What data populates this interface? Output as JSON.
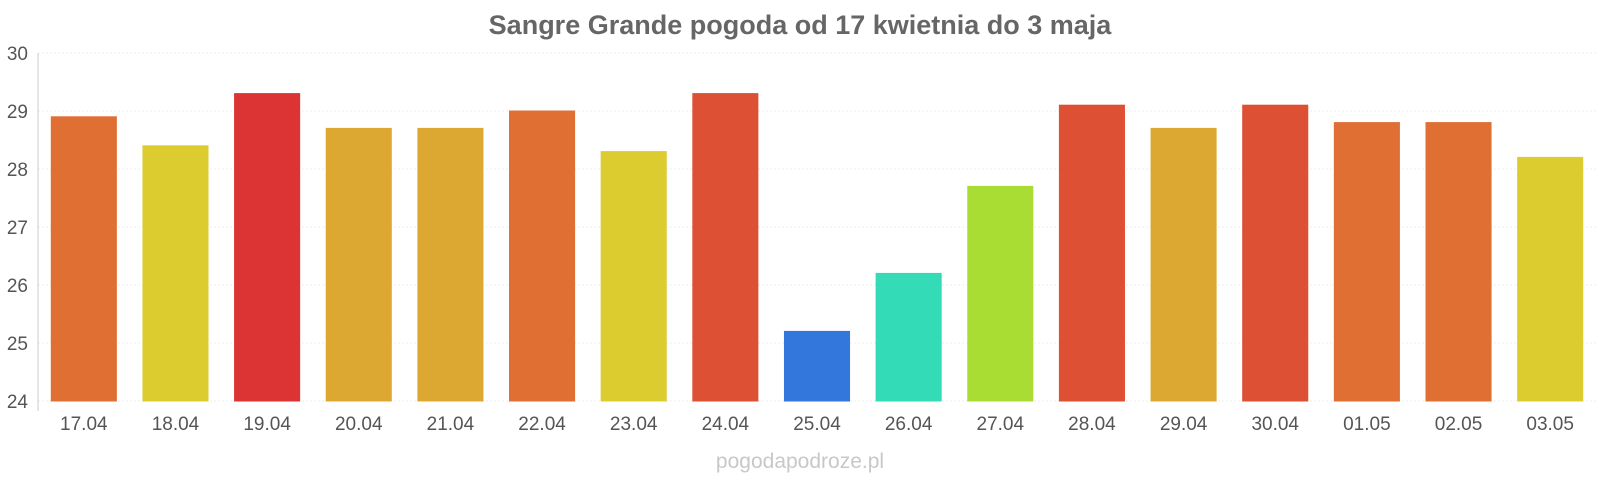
{
  "chart_data": {
    "type": "bar",
    "title": "Sangre Grande pogoda od 17 kwietnia do 3 maja",
    "xlabel": "",
    "ylabel": "",
    "ylim": [
      24,
      30
    ],
    "yticks": [
      24,
      25,
      26,
      27,
      28,
      29,
      30
    ],
    "grid": true,
    "legend": "none",
    "categories": [
      "17.04",
      "18.04",
      "19.04",
      "20.04",
      "21.04",
      "22.04",
      "23.04",
      "24.04",
      "25.04",
      "26.04",
      "27.04",
      "28.04",
      "29.04",
      "30.04",
      "01.05",
      "02.05",
      "03.05"
    ],
    "values": [
      28.9,
      28.4,
      29.3,
      28.7,
      28.7,
      29.0,
      28.3,
      29.3,
      25.2,
      26.2,
      27.7,
      29.1,
      28.7,
      29.1,
      28.8,
      28.8,
      28.2
    ],
    "colors": [
      "#df6f33",
      "#dccc30",
      "#dc3434",
      "#dca832",
      "#dca832",
      "#df6f33",
      "#dccc30",
      "#dd5033",
      "#3377dd",
      "#33dbb6",
      "#aadd33",
      "#dd5033",
      "#dca832",
      "#dd5033",
      "#df6f33",
      "#df6f33",
      "#dccc30"
    ]
  },
  "watermark": "pogodapodroze.pl"
}
